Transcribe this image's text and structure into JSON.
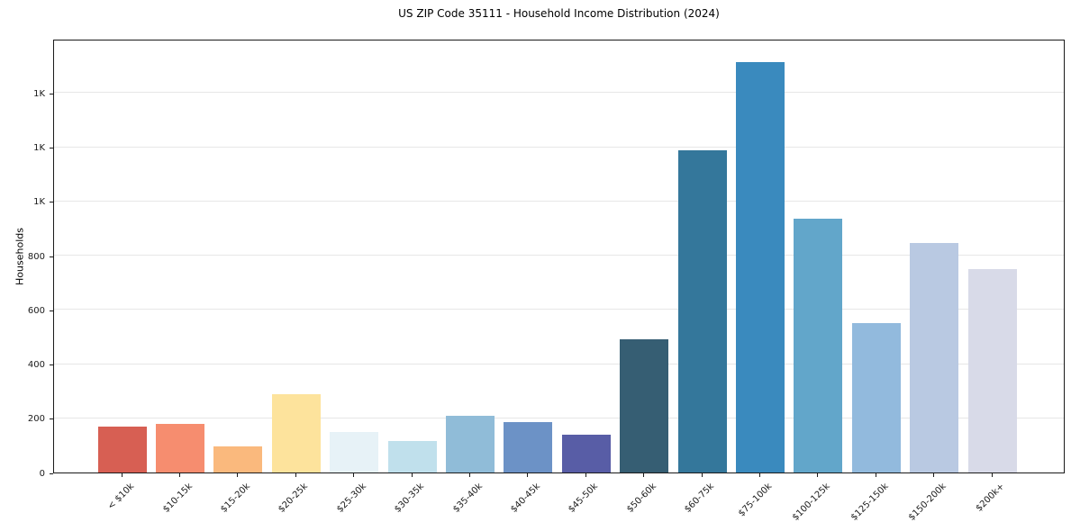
{
  "chart_data": {
    "type": "bar",
    "title": "US ZIP Code 35111 - Household Income Distribution (2024)",
    "xlabel": "",
    "ylabel": "Households",
    "categories": [
      "< $10k",
      "$10-15k",
      "$15-20k",
      "$20-25k",
      "$25-30k",
      "$30-35k",
      "$35-40k",
      "$40-45k",
      "$45-50k",
      "$50-60k",
      "$60-75k",
      "$75-100k",
      "$100-125k",
      "$125-150k",
      "$150-200k",
      "$200k+"
    ],
    "values": [
      170,
      180,
      95,
      290,
      150,
      115,
      210,
      185,
      140,
      490,
      1190,
      1515,
      935,
      550,
      845,
      750
    ],
    "bar_colors": [
      "#d75f53",
      "#f68d6f",
      "#fab97d",
      "#fde39c",
      "#e7f2f7",
      "#c0e0ec",
      "#90bcd8",
      "#6c92c6",
      "#585da6",
      "#365e73",
      "#34779b",
      "#3a8abe",
      "#62a6ca",
      "#92badd",
      "#b9c9e2",
      "#d8dae8"
    ],
    "ylim": [
      0,
      1600
    ],
    "yticks": {
      "values": [
        0,
        200,
        400,
        600,
        800,
        1000,
        1200,
        1400
      ],
      "labels": [
        "0",
        "200",
        "400",
        "600",
        "800",
        "1K",
        "1K",
        "1K"
      ]
    },
    "grid": "horizontal",
    "legend": "none"
  }
}
